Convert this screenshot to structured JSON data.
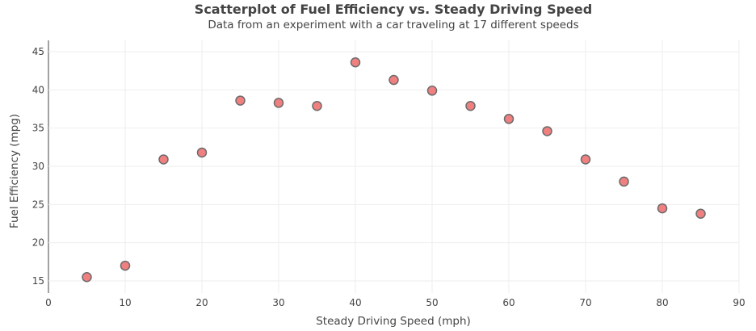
{
  "chart_data": {
    "type": "scatter",
    "title": "Scatterplot of Fuel Efficiency vs. Steady Driving Speed",
    "subtitle": "Data from an experiment with a car traveling at 17 different speeds",
    "xlabel": "Steady Driving Speed (mph)",
    "ylabel": "Fuel Efficiency (mpg)",
    "xlim": [
      0,
      90
    ],
    "ylim": [
      13.5,
      46
    ],
    "xticks": [
      0,
      10,
      20,
      30,
      40,
      50,
      60,
      70,
      80,
      90
    ],
    "yticks": [
      15,
      20,
      25,
      30,
      35,
      40,
      45
    ],
    "grid": true,
    "marker_color": "#f08080",
    "marker_edge_color": "#6b6b6b",
    "x": [
      5,
      10,
      15,
      20,
      25,
      30,
      35,
      40,
      45,
      50,
      55,
      60,
      65,
      70,
      75,
      80,
      85
    ],
    "y": [
      15.5,
      17.0,
      30.9,
      31.8,
      38.6,
      38.3,
      37.9,
      43.6,
      41.3,
      39.9,
      37.9,
      36.2,
      34.6,
      30.9,
      28.0,
      24.5,
      23.8
    ]
  }
}
